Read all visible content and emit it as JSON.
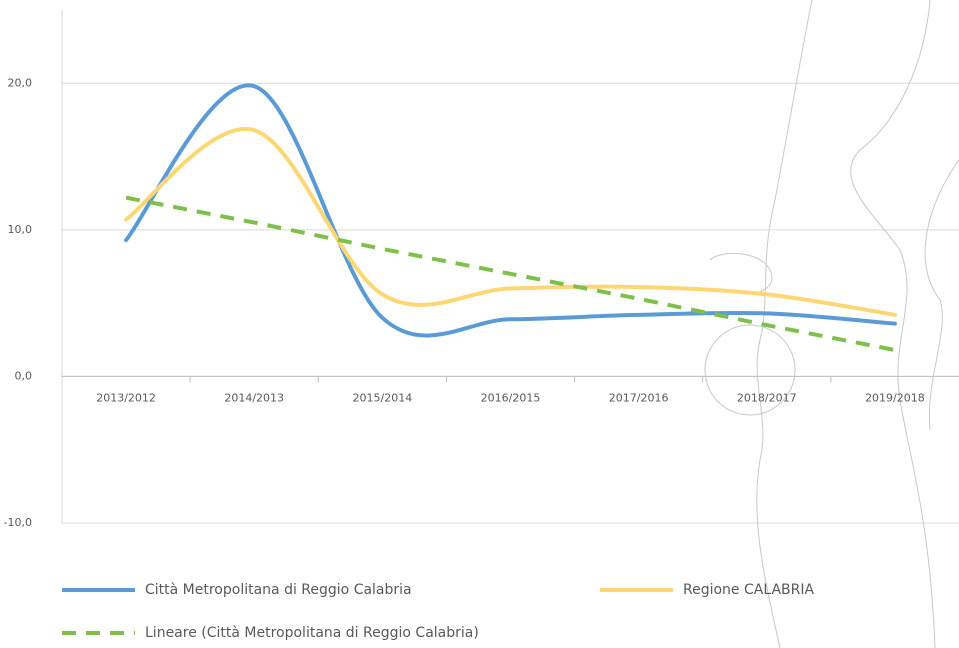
{
  "chart_data": {
    "type": "line",
    "categories": [
      "2013/2012",
      "2014/2013",
      "2015/2014",
      "2016/2015",
      "2017/2016",
      "2018/2017",
      "2019/2018"
    ],
    "series": [
      {
        "name": "Città Metropolitana di Reggio Calabria",
        "color": "#5b9bd5",
        "values": [
          9.3,
          19.8,
          4.0,
          3.9,
          4.2,
          4.3,
          3.6
        ]
      },
      {
        "name": "Regione CALABRIA",
        "color": "#fdd773",
        "values": [
          10.7,
          16.8,
          5.6,
          6.0,
          6.1,
          5.6,
          4.2
        ]
      },
      {
        "name": "Lineare (Città Metropolitana di Reggio Calabria)",
        "color": "#7fbf4b",
        "dashed": true,
        "values": [
          12.2,
          10.5,
          8.7,
          7.0,
          5.3,
          3.5,
          1.8
        ]
      }
    ],
    "ylim": [
      -10,
      25
    ],
    "yticks": [
      {
        "value": -10,
        "label": "-10,0"
      },
      {
        "value": 0,
        "label": "0,0"
      },
      {
        "value": 10,
        "label": "10,0"
      },
      {
        "value": 20,
        "label": "20,0"
      }
    ],
    "grid": true
  }
}
